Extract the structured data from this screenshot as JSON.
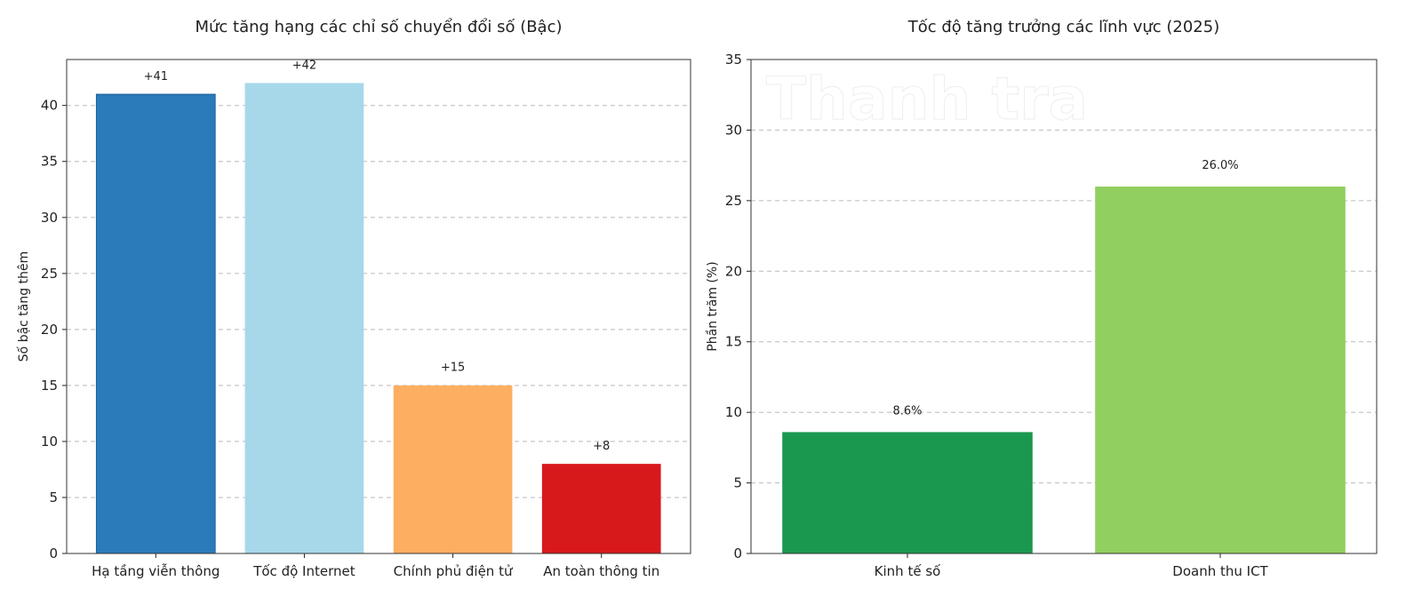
{
  "chart_data": [
    {
      "type": "bar",
      "title": "Mức tăng hạng các chỉ số chuyển đổi số (Bậc)",
      "xlabel": "",
      "ylabel": "Số bậc tăng thêm",
      "categories": [
        "Hạ tầng viễn thông",
        "Tốc độ Internet",
        "Chính phủ điện tử",
        "An toàn thông tin"
      ],
      "values": [
        41,
        42,
        15,
        8
      ],
      "data_labels": [
        "+41",
        "+42",
        "+15",
        "+8"
      ],
      "colors": [
        "#2b7bba",
        "#a6d8ea",
        "#fdae61",
        "#d7191c"
      ],
      "ylim": [
        0,
        44.1
      ],
      "yticks": [
        0,
        5,
        10,
        15,
        20,
        25,
        30,
        35,
        40
      ],
      "grid": "y-dashed"
    },
    {
      "type": "bar",
      "title": "Tốc độ tăng trưởng các lĩnh vực (2025)",
      "xlabel": "",
      "ylabel": "Phần trăm (%)",
      "categories": [
        "Kinh tế số",
        "Doanh thu ICT"
      ],
      "values": [
        8.6,
        26.0
      ],
      "data_labels": [
        "8.6%",
        "26.0%"
      ],
      "colors": [
        "#1a9850",
        "#91cf60"
      ],
      "ylim": [
        0,
        35
      ],
      "yticks": [
        0,
        5,
        10,
        15,
        20,
        25,
        30,
        35
      ],
      "grid": "y-dashed"
    }
  ],
  "watermark": "Thanh tra"
}
